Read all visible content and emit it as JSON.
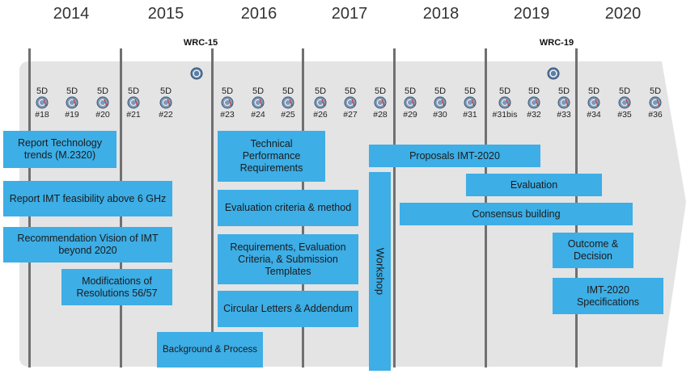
{
  "years": [
    "2014",
    "2015",
    "2016",
    "2017",
    "2018",
    "2019",
    "2020"
  ],
  "wrc": [
    "WRC-15",
    "WRC-19"
  ],
  "meetings": [
    {
      "group": "5D",
      "number": "#18"
    },
    {
      "group": "5D",
      "number": "#19"
    },
    {
      "group": "5D",
      "number": "#20"
    },
    {
      "group": "5D",
      "number": "#21"
    },
    {
      "group": "5D",
      "number": "#22"
    },
    {
      "group": "5D",
      "number": "#23"
    },
    {
      "group": "5D",
      "number": "#24"
    },
    {
      "group": "5D",
      "number": "#25"
    },
    {
      "group": "5D",
      "number": "#26"
    },
    {
      "group": "5D",
      "number": "#27"
    },
    {
      "group": "5D",
      "number": "#28"
    },
    {
      "group": "5D",
      "number": "#29"
    },
    {
      "group": "5D",
      "number": "#30"
    },
    {
      "group": "5D",
      "number": "#31"
    },
    {
      "group": "5D",
      "number": "#31bis"
    },
    {
      "group": "5D",
      "number": "#32"
    },
    {
      "group": "5D",
      "number": "#33"
    },
    {
      "group": "5D",
      "number": "#34"
    },
    {
      "group": "5D",
      "number": "#35"
    },
    {
      "group": "5D",
      "number": "#36"
    }
  ],
  "activities": [
    {
      "label": "Report Technology trends (M.2320)"
    },
    {
      "label": "Report  IMT feasibility  above 6 GHz"
    },
    {
      "label": "Recommendation Vision of IMT beyond 2020"
    },
    {
      "label": "Modifications of Resolutions 56/57"
    },
    {
      "label": "Technical Performance Requirements"
    },
    {
      "label": "Evaluation criteria & method"
    },
    {
      "label": "Requirements, Evaluation Criteria, & Submission Templates"
    },
    {
      "label": "Circular Letters & Addendum"
    },
    {
      "label": "Background & Process"
    },
    {
      "label": "Proposals IMT-2020"
    },
    {
      "label": "Evaluation"
    },
    {
      "label": "Consensus building"
    },
    {
      "label": "Outcome & Decision"
    },
    {
      "label": "IMT-2020 Specifications"
    }
  ],
  "workshop_label": "Workshop",
  "colors": {
    "box": "#3daee6",
    "band": "#e4e4e4",
    "line": "#707070"
  }
}
